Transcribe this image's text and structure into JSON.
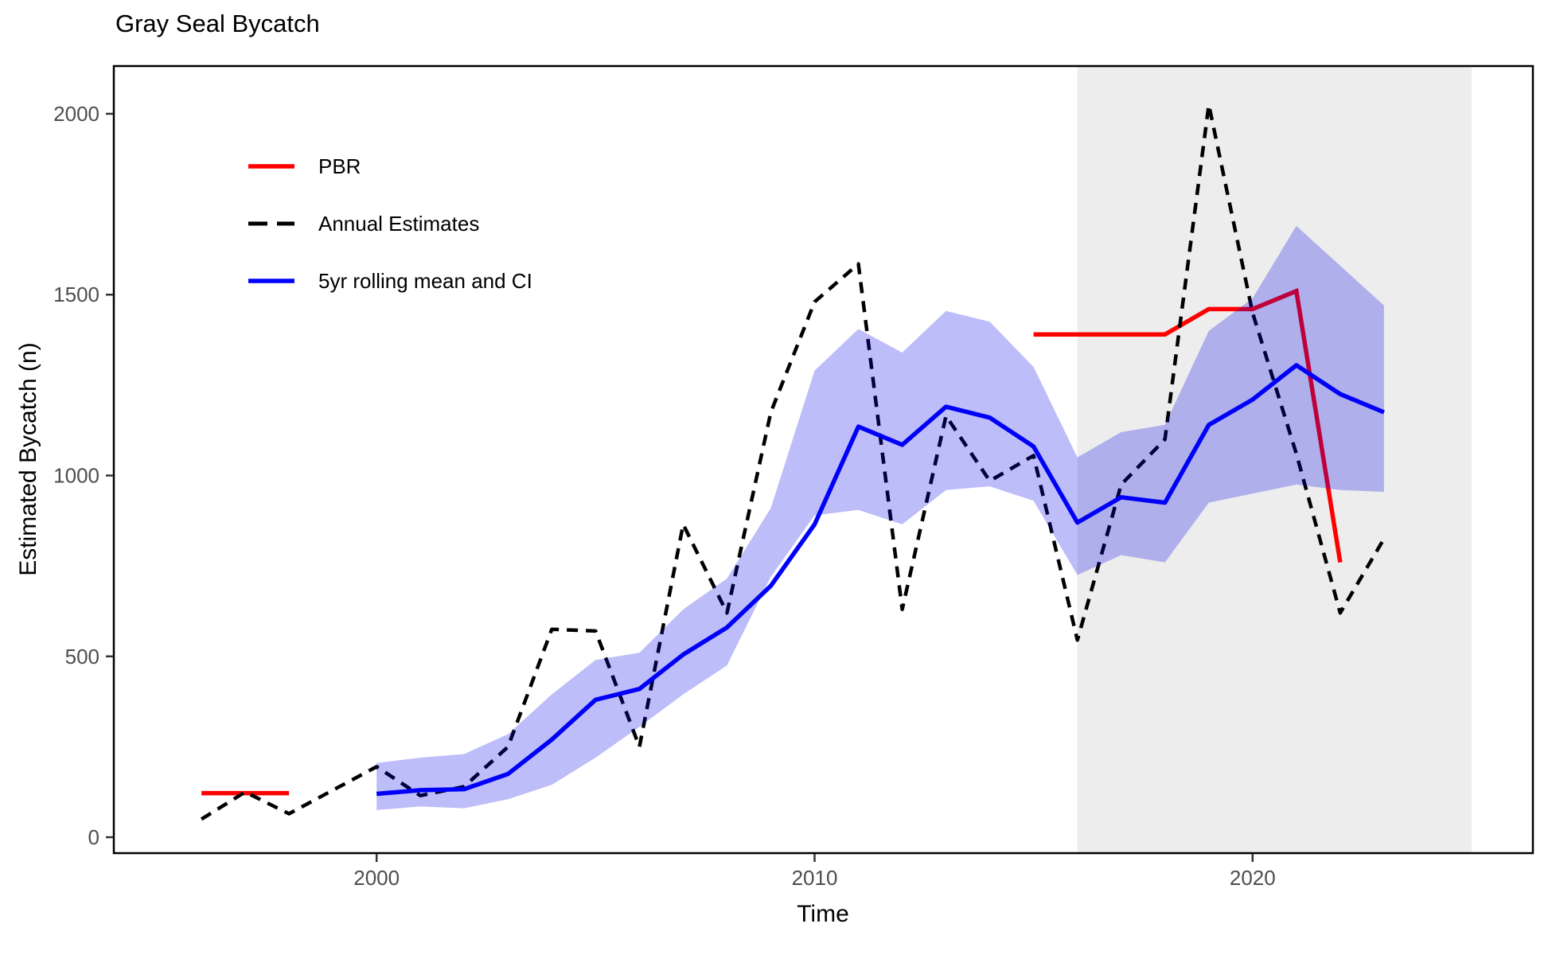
{
  "chart_data": {
    "type": "line",
    "title": "Gray Seal Bycatch",
    "xlabel": "Time",
    "ylabel": "Estimated Bycatch (n)",
    "xlim": [
      1994,
      2026.4
    ],
    "ylim": [
      -44,
      2132
    ],
    "x_ticks": [
      2000,
      2010,
      2020
    ],
    "y_ticks": [
      0,
      500,
      1000,
      1500,
      2000
    ],
    "grid": "off",
    "legend_position": "inside-top-left",
    "colors": {
      "pbr": "#FF0000",
      "annual": "#000000",
      "mean": "#0000FF",
      "ribbon_fill": "rgba(0,0,230,0.26)",
      "shaded_band": "#EDEDED",
      "tick_label": "#4D4D4D",
      "axis": "#000000"
    },
    "shaded_band": {
      "from_year": 2016,
      "to_year": 2025
    },
    "legend": [
      {
        "label": "PBR",
        "color": "#FF0000",
        "style": "solid"
      },
      {
        "label": "Annual Estimates",
        "color": "#000000",
        "style": "dashed"
      },
      {
        "label": "5yr rolling mean and CI",
        "color": "#0000FF",
        "style": "solid"
      }
    ],
    "series": [
      {
        "name": "PBR",
        "type": "line",
        "segments": [
          {
            "years": [
              1996,
              1998
            ],
            "values": [
              122,
              122
            ]
          },
          {
            "years": [
              2015,
              2018,
              2019,
              2020,
              2021,
              2022
            ],
            "values": [
              1390,
              1390,
              1460,
              1460,
              1510,
              760
            ]
          }
        ]
      },
      {
        "name": "Annual Estimates",
        "type": "dashed-line",
        "years": [
          1996,
          1997,
          1998,
          1999,
          2000,
          2001,
          2002,
          2003,
          2004,
          2005,
          2006,
          2007,
          2008,
          2009,
          2010,
          2011,
          2012,
          2013,
          2014,
          2015,
          2016,
          2017,
          2018,
          2019,
          2020,
          2021,
          2022,
          2023
        ],
        "values": [
          50,
          125,
          65,
          130,
          195,
          115,
          140,
          250,
          575,
          570,
          250,
          865,
          620,
          1175,
          1480,
          1585,
          630,
          1165,
          985,
          1055,
          545,
          975,
          1100,
          2025,
          1450,
          1060,
          620,
          825
        ]
      },
      {
        "name": "5yr rolling mean",
        "type": "line",
        "years": [
          2000,
          2001,
          2002,
          2003,
          2004,
          2005,
          2006,
          2007,
          2008,
          2009,
          2010,
          2011,
          2012,
          2013,
          2014,
          2015,
          2016,
          2017,
          2018,
          2019,
          2020,
          2021,
          2022,
          2023
        ],
        "values": [
          120,
          130,
          133,
          175,
          270,
          380,
          410,
          505,
          580,
          695,
          865,
          1135,
          1085,
          1190,
          1160,
          1080,
          870,
          940,
          925,
          1140,
          1210,
          1305,
          1225,
          1175
        ]
      },
      {
        "name": "5yr rolling CI",
        "type": "ribbon",
        "years": [
          2000,
          2001,
          2002,
          2003,
          2004,
          2005,
          2006,
          2007,
          2008,
          2009,
          2010,
          2011,
          2012,
          2013,
          2014,
          2015,
          2016,
          2017,
          2018,
          2019,
          2020,
          2021,
          2022,
          2023
        ],
        "upper": [
          205,
          220,
          230,
          285,
          395,
          490,
          510,
          630,
          715,
          910,
          1290,
          1405,
          1340,
          1455,
          1425,
          1300,
          1050,
          1120,
          1140,
          1400,
          1490,
          1690,
          1580,
          1470
        ],
        "lower": [
          75,
          85,
          80,
          105,
          145,
          220,
          305,
          395,
          475,
          720,
          890,
          905,
          865,
          960,
          970,
          930,
          725,
          780,
          760,
          925,
          950,
          975,
          960,
          955
        ]
      }
    ]
  }
}
